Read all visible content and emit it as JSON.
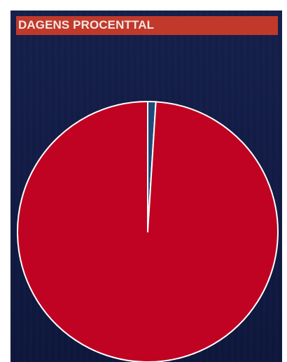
{
  "header": {
    "title": "DAGENS PROCENTTAL"
  },
  "colors": {
    "title_bar": "#c0392b",
    "panel_background": "#131e48",
    "slice_main": "#c10323",
    "slice_small": "#1f4a7a",
    "slice_border": "#ffffff"
  },
  "chart_data": {
    "type": "pie",
    "title": "DAGENS PROCENTTAL",
    "slices": [
      {
        "value": 1,
        "color": "#1f4a7a"
      },
      {
        "value": 99,
        "color": "#c10323"
      }
    ],
    "start": "top",
    "direction": "clockwise",
    "legend": "none"
  }
}
